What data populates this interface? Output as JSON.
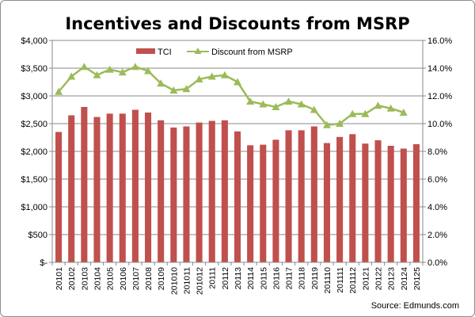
{
  "chart_data": {
    "type": "bar",
    "title": "Incentives and Discounts from MSRP",
    "source": "Source: Edmunds.com",
    "categories": [
      "20101",
      "20102",
      "20103",
      "20104",
      "20105",
      "20106",
      "20107",
      "20108",
      "20109",
      "201010",
      "201011",
      "201012",
      "20111",
      "20112",
      "20113",
      "20114",
      "20115",
      "20116",
      "20117",
      "20118",
      "20119",
      "201110",
      "201111",
      "201112",
      "20121",
      "20122",
      "20123",
      "20124",
      "20125"
    ],
    "series": [
      {
        "name": "TCI",
        "type": "bar",
        "axis": "left",
        "color": "#c0504d",
        "values": [
          2350,
          2650,
          2800,
          2620,
          2680,
          2680,
          2750,
          2700,
          2560,
          2430,
          2450,
          2520,
          2550,
          2560,
          2360,
          2110,
          2120,
          2210,
          2380,
          2380,
          2450,
          2150,
          2260,
          2310,
          2140,
          2200,
          2100,
          2050,
          2130
        ]
      },
      {
        "name": "Discount from MSRP",
        "type": "line",
        "axis": "right",
        "color": "#9bbb59",
        "marker": "triangle",
        "values": [
          12.3,
          13.4,
          14.1,
          13.5,
          13.9,
          13.7,
          14.1,
          13.8,
          12.9,
          12.4,
          12.5,
          13.2,
          13.4,
          13.5,
          13.0,
          11.6,
          11.4,
          11.2,
          11.6,
          11.4,
          11.0,
          9.9,
          10.0,
          10.7,
          10.7,
          11.3,
          11.1,
          10.8,
          null
        ]
      }
    ],
    "left_axis": {
      "ticks": [
        "$-",
        "$500",
        "$1,000",
        "$1,500",
        "$2,000",
        "$2,500",
        "$3,000",
        "$3,500",
        "$4,000"
      ],
      "ylim": [
        0,
        4000
      ]
    },
    "right_axis": {
      "ticks": [
        "0.0%",
        "2.0%",
        "4.0%",
        "6.0%",
        "8.0%",
        "10.0%",
        "12.0%",
        "14.0%",
        "16.0%"
      ],
      "ylim": [
        0,
        16
      ]
    },
    "grid": true,
    "legend_position": "top-center"
  }
}
